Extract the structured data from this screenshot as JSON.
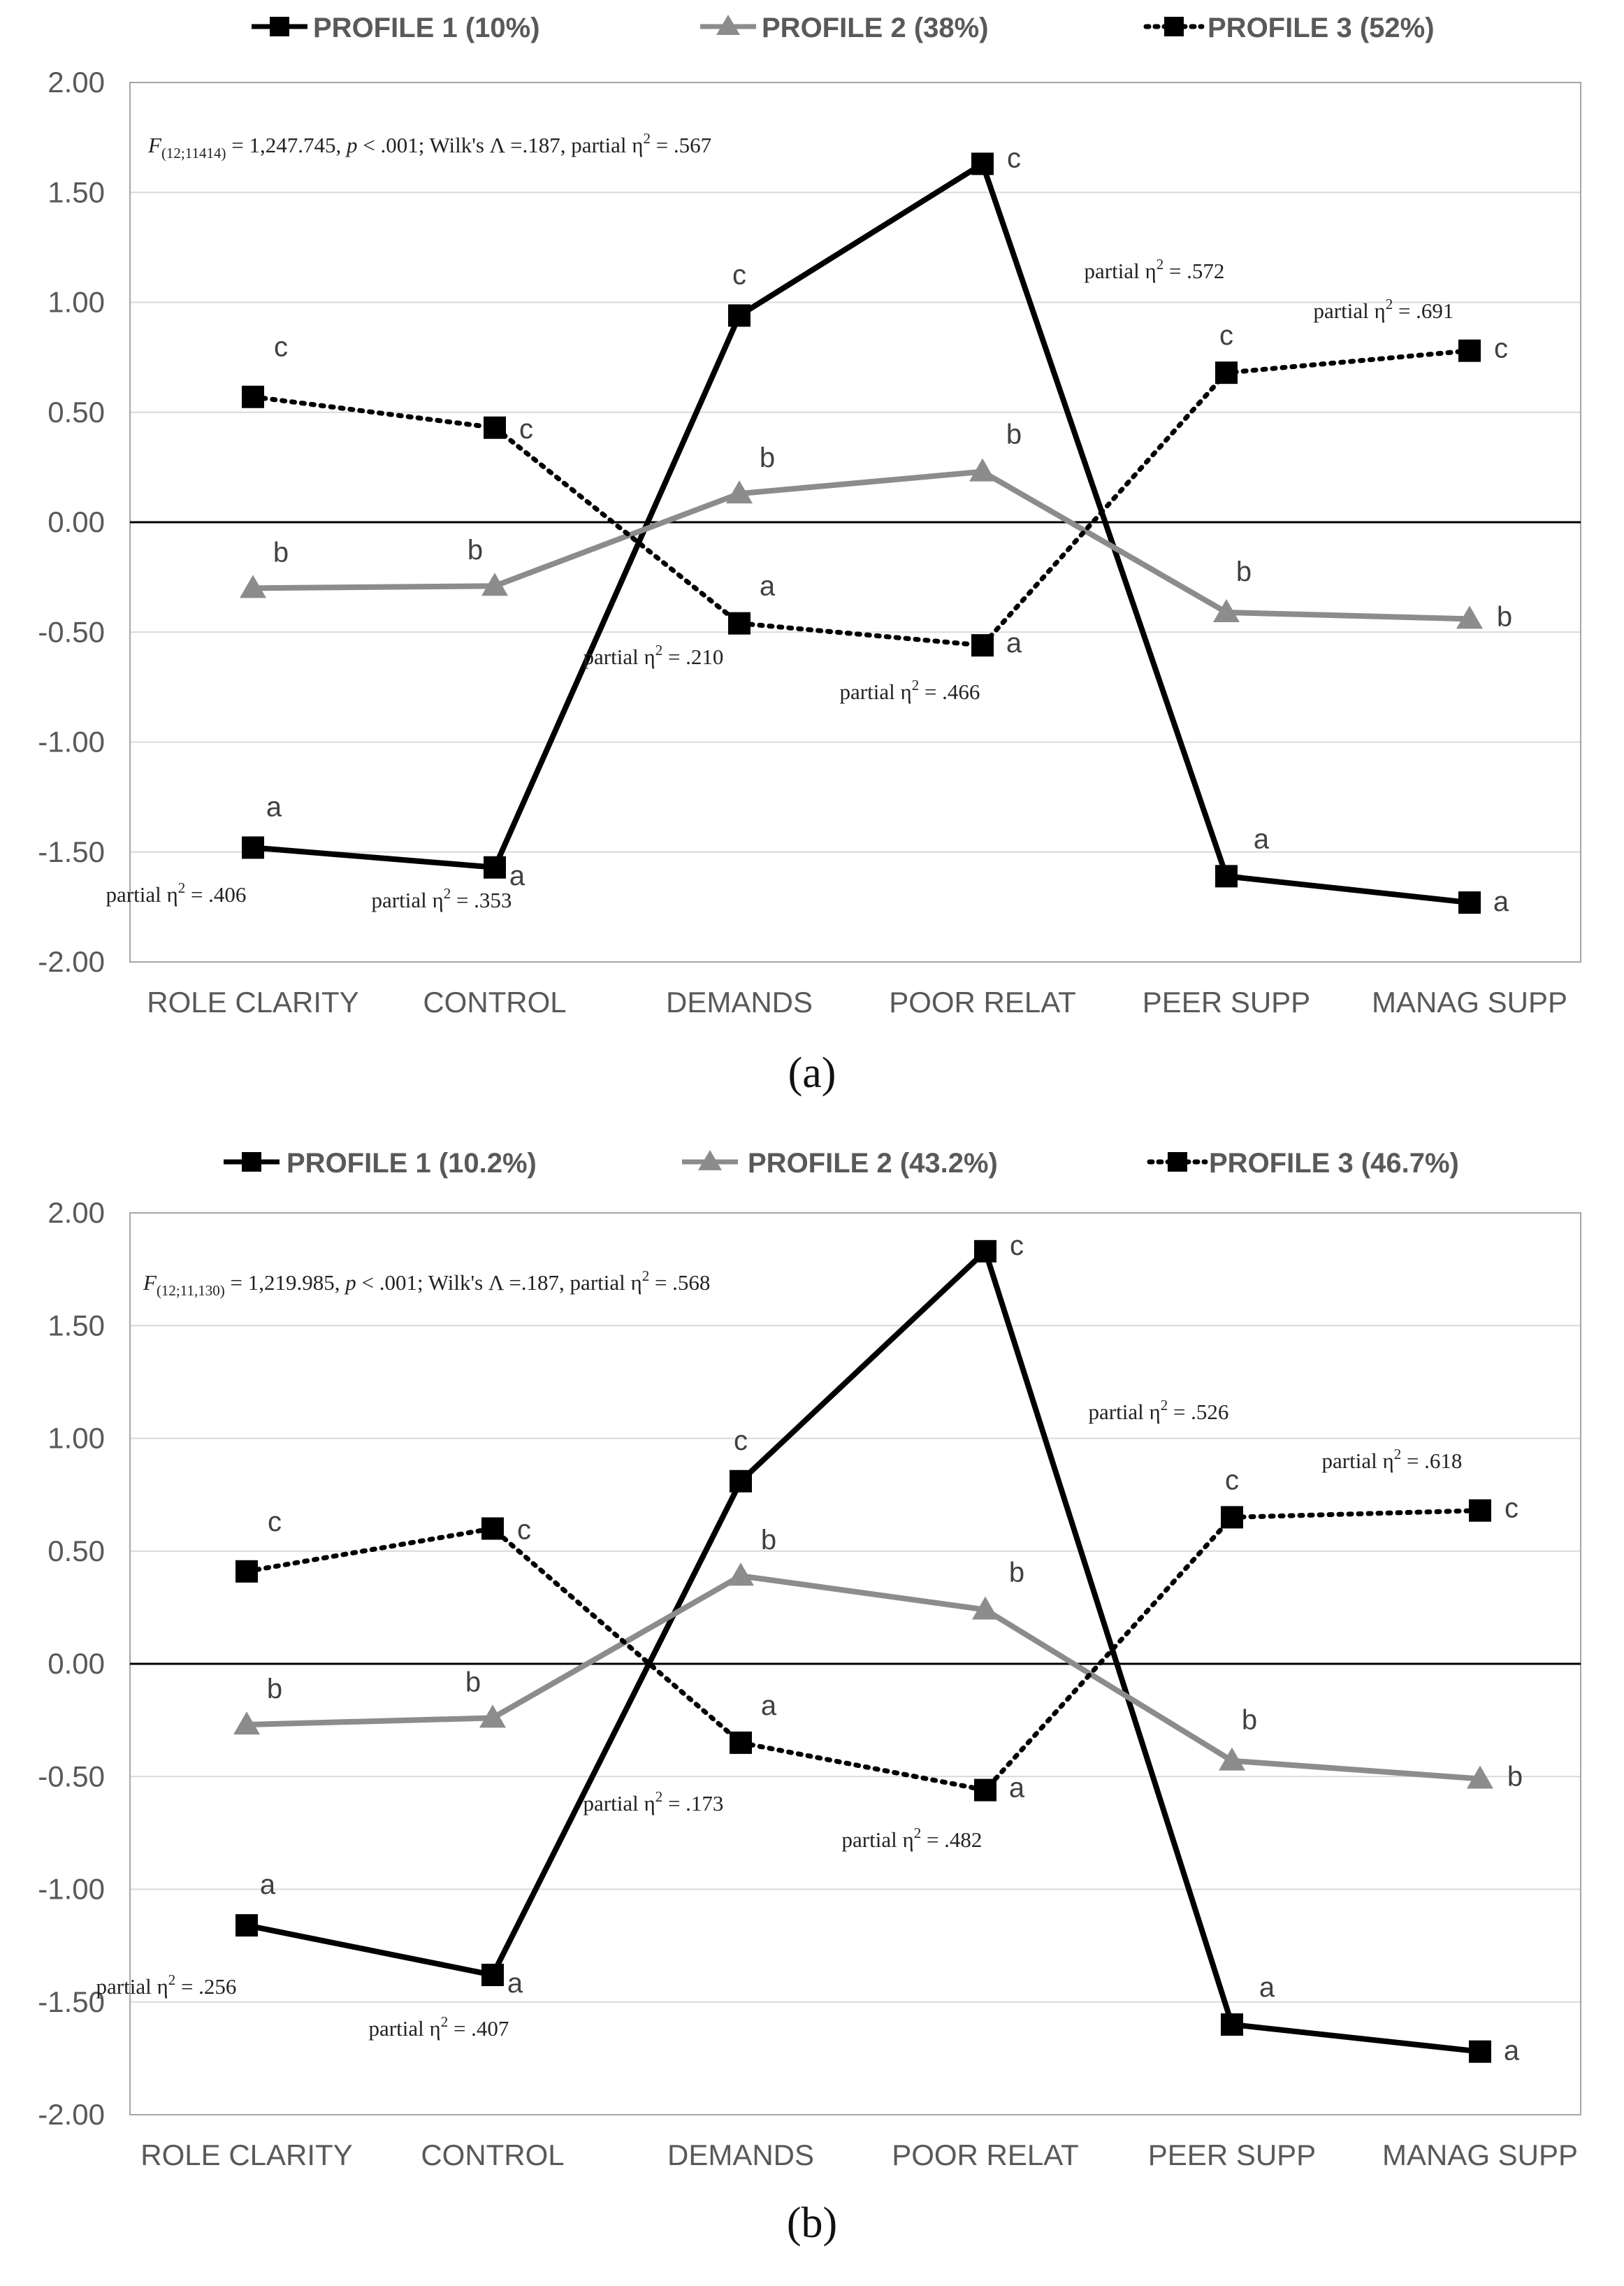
{
  "chart_data": [
    {
      "type": "line",
      "panel_label": "(a)",
      "categories": [
        "ROLE CLARITY",
        "CONTROL",
        "DEMANDS",
        "POOR RELAT",
        "PEER SUPP",
        "MANAG SUPP"
      ],
      "ylim": [
        -2.0,
        2.0
      ],
      "yticks": [
        "2.00",
        "1.50",
        "1.00",
        "0.50",
        "0.00",
        "-0.50",
        "-1.00",
        "-1.50",
        "-2.00"
      ],
      "grid": true,
      "legend_position": "top-center",
      "stat_note": {
        "F_label": "F",
        "df": "(12;11414)",
        "value": " = 1,247.745, ",
        "p_label": "p",
        "p_value": " < .001; Wilk's Λ =.187, partial η",
        "sup": "2",
        "tail": " = .567"
      },
      "series": [
        {
          "name": "PROFILE 1 (10%)",
          "color": "#000000",
          "dash": "solid",
          "marker": "square",
          "values": [
            -1.48,
            -1.57,
            0.94,
            1.63,
            -1.61,
            -1.73
          ],
          "letters": [
            "a",
            "a",
            "c",
            "c",
            "a",
            "a"
          ]
        },
        {
          "name": "PROFILE 2 (38%)",
          "color": "#8c8c8c",
          "dash": "solid",
          "marker": "triangle",
          "values": [
            -0.3,
            -0.29,
            0.13,
            0.23,
            -0.41,
            -0.44
          ],
          "letters": [
            "b",
            "b",
            "b",
            "b",
            "b",
            "b"
          ]
        },
        {
          "name": "PROFILE 3 (52%)",
          "color": "#000000",
          "dash": "dotted",
          "marker": "square",
          "values": [
            0.57,
            0.43,
            -0.46,
            -0.56,
            0.68,
            0.78
          ],
          "letters": [
            "c",
            "c",
            "a",
            "a",
            "c",
            "c"
          ]
        }
      ],
      "effect_sizes": [
        {
          "prefix": "partial η",
          "sup": "2",
          "value": " = .406"
        },
        {
          "prefix": "partial η",
          "sup": "2",
          "value": " = .353"
        },
        {
          "prefix": "partial η",
          "sup": "2",
          "value": " = .210"
        },
        {
          "prefix": "partial η",
          "sup": "2",
          "value": " = .466"
        },
        {
          "prefix": "partial η",
          "sup": "2",
          "value": " = .572"
        },
        {
          "prefix": "partial η",
          "sup": "2",
          "value": " = .691"
        }
      ]
    },
    {
      "type": "line",
      "panel_label": "(b)",
      "categories": [
        "ROLE CLARITY",
        "CONTROL",
        "DEMANDS",
        "POOR RELAT",
        "PEER SUPP",
        "MANAG SUPP"
      ],
      "ylim": [
        -2.0,
        2.0
      ],
      "yticks": [
        "2.00",
        "1.50",
        "1.00",
        "0.50",
        "0.00",
        "-0.50",
        "-1.00",
        "-1.50",
        "-2.00"
      ],
      "grid": true,
      "legend_position": "top-center",
      "stat_note": {
        "F_label": "F",
        "df": "(12;11,130)",
        "value": " = 1,219.985, ",
        "p_label": "p",
        "p_value": " < .001; Wilk's Λ =.187, partial η",
        "sup": "2",
        "tail": " = .568"
      },
      "series": [
        {
          "name": "PROFILE 1 (10.2%)",
          "color": "#000000",
          "dash": "solid",
          "marker": "square",
          "values": [
            -1.16,
            -1.38,
            0.81,
            1.83,
            -1.6,
            -1.72
          ],
          "letters": [
            "a",
            "a",
            "c",
            "c",
            "a",
            "a"
          ]
        },
        {
          "name": "PROFILE 2 (43.2%)",
          "color": "#8c8c8c",
          "dash": "solid",
          "marker": "triangle",
          "values": [
            -0.27,
            -0.24,
            0.39,
            0.24,
            -0.43,
            -0.51
          ],
          "letters": [
            "b",
            "b",
            "b",
            "b",
            "b",
            "b"
          ]
        },
        {
          "name": "PROFILE 3 (46.7%)",
          "color": "#000000",
          "dash": "dotted",
          "marker": "square",
          "values": [
            0.41,
            0.6,
            -0.35,
            -0.56,
            0.65,
            0.68
          ],
          "letters": [
            "c",
            "c",
            "a",
            "a",
            "c",
            "c"
          ]
        }
      ],
      "effect_sizes": [
        {
          "prefix": "partial η",
          "sup": "2",
          "value": " = .256"
        },
        {
          "prefix": "partial η",
          "sup": "2",
          "value": " = .407"
        },
        {
          "prefix": "partial η",
          "sup": "2",
          "value": " = .173"
        },
        {
          "prefix": "partial η",
          "sup": "2",
          "value": " = .482"
        },
        {
          "prefix": "partial η",
          "sup": "2",
          "value": " = .526"
        },
        {
          "prefix": "partial η",
          "sup": "2",
          "value": " = .618"
        }
      ]
    }
  ]
}
